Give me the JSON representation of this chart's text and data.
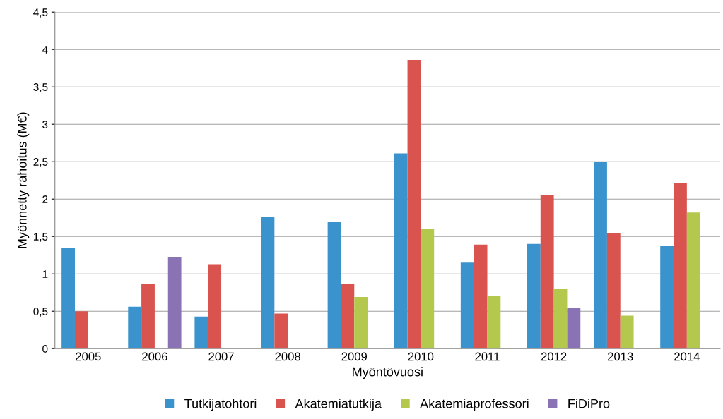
{
  "chart_data": {
    "type": "bar",
    "xlabel": "Myöntövuosi",
    "ylabel": "Myönnetty rahoitus (M€)",
    "categories": [
      "2005",
      "2006",
      "2007",
      "2008",
      "2009",
      "2010",
      "2011",
      "2012",
      "2013",
      "2014"
    ],
    "series": [
      {
        "name": "Tutkijatohtori",
        "color": "#3a93cc",
        "values": [
          1.35,
          0.56,
          0.43,
          1.76,
          1.69,
          2.61,
          1.15,
          1.4,
          2.5,
          1.37
        ]
      },
      {
        "name": "Akatemiatutkija",
        "color": "#d9534f",
        "values": [
          0.5,
          0.86,
          1.13,
          0.47,
          0.87,
          3.86,
          1.39,
          2.05,
          1.55,
          2.21
        ]
      },
      {
        "name": "Akatemiaprofessori",
        "color": "#b5c84e",
        "values": [
          null,
          null,
          null,
          null,
          0.69,
          1.6,
          0.71,
          0.8,
          0.44,
          1.82
        ]
      },
      {
        "name": "FiDiPro",
        "color": "#8a73b5",
        "values": [
          null,
          1.22,
          null,
          null,
          null,
          null,
          null,
          0.54,
          null,
          null
        ]
      }
    ],
    "ylim": [
      0,
      4.5
    ],
    "yticks": [
      0,
      {
        "value": 0.5,
        "label": "0,5"
      },
      1,
      {
        "value": 1.5,
        "label": "1,5"
      },
      2,
      {
        "value": 2.5,
        "label": "2,5"
      },
      3,
      {
        "value": 3.5,
        "label": "3,5"
      },
      4,
      {
        "value": 4.5,
        "label": "4,5"
      }
    ],
    "grid": "y",
    "legend": "bottom"
  }
}
